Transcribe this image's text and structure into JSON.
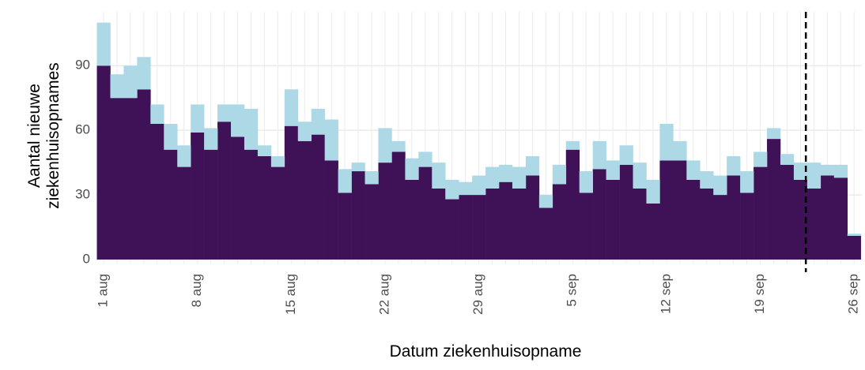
{
  "chart_data": {
    "type": "stacked_bar",
    "x_label": "Datum ziekenhuisopname",
    "y_label": [
      "Aantal nieuwe",
      "ziekenhuisopnames"
    ],
    "categories": [
      "1 aug",
      null,
      null,
      null,
      null,
      null,
      null,
      "8 aug",
      null,
      null,
      null,
      null,
      null,
      null,
      "15 aug",
      null,
      null,
      null,
      null,
      null,
      null,
      "22 aug",
      null,
      null,
      null,
      null,
      null,
      null,
      "29 aug",
      null,
      null,
      null,
      null,
      null,
      null,
      "5 sep",
      null,
      null,
      null,
      null,
      null,
      null,
      "12 sep",
      null,
      null,
      null,
      null,
      null,
      null,
      "19 sep",
      null,
      null,
      null,
      null,
      null,
      null,
      "26 sep"
    ],
    "series": [
      {
        "color": "#3f1258",
        "values": [
          90,
          75,
          75,
          79,
          63,
          51,
          43,
          59,
          51,
          64,
          57,
          51,
          48,
          43,
          62,
          55,
          58,
          46,
          31,
          41,
          35,
          45,
          50,
          37,
          43,
          33,
          28,
          30,
          30,
          33,
          36,
          33,
          39,
          24,
          35,
          51,
          31,
          42,
          37,
          44,
          33,
          26,
          46,
          46,
          37,
          33,
          30,
          39,
          31,
          43,
          56,
          44,
          37,
          33,
          39,
          38,
          11
        ]
      },
      {
        "color": "#add8e6",
        "values": [
          20,
          11,
          15,
          15,
          9,
          12,
          10,
          13,
          10,
          8,
          15,
          19,
          5,
          5,
          17,
          9,
          12,
          19,
          11,
          4,
          6,
          16,
          5,
          10,
          7,
          12,
          9,
          6,
          9,
          10,
          8,
          10,
          9,
          6,
          9,
          4,
          10,
          13,
          9,
          9,
          12,
          11,
          17,
          9,
          9,
          8,
          9,
          9,
          10,
          7,
          5,
          5,
          8,
          12,
          5,
          6,
          1
        ]
      }
    ],
    "vline_index": 52.4,
    "ylim": [
      -2.2,
      115
    ],
    "yticks": [
      0,
      30,
      60,
      90
    ],
    "grid": true
  }
}
